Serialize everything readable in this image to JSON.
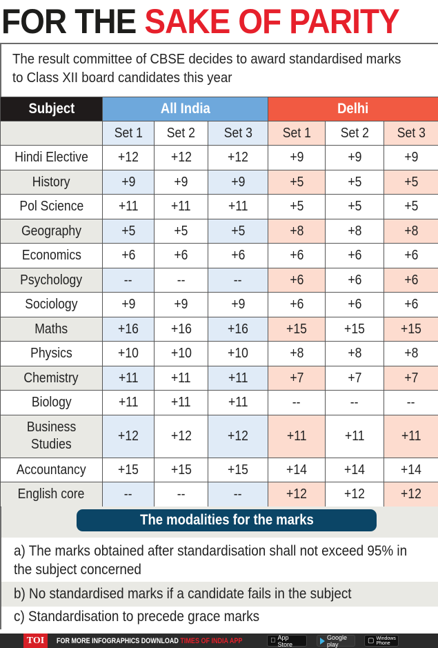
{
  "headline": {
    "part1": "FOR THE",
    "part2": "SAKE OF PARITY"
  },
  "intro": "The result committee of CBSE decides to award standardised marks to Class XII board candidates this year",
  "table": {
    "subject_header": "Subject",
    "groups": [
      {
        "label": "All India",
        "color": "#6ea8dc"
      },
      {
        "label": "Delhi",
        "color": "#f15a42"
      }
    ],
    "set_labels": [
      "Set 1",
      "Set 2",
      "Set 3",
      "Set 1",
      "Set 2",
      "Set 3"
    ],
    "rows": [
      {
        "subject": "Hindi Elective",
        "values": [
          "+12",
          "+12",
          "+12",
          "+9",
          "+9",
          "+9"
        ]
      },
      {
        "subject": "History",
        "values": [
          "+9",
          "+9",
          "+9",
          "+5",
          "+5",
          "+5"
        ]
      },
      {
        "subject": "Pol Science",
        "values": [
          "+11",
          "+11",
          "+11",
          "+5",
          "+5",
          "+5"
        ]
      },
      {
        "subject": "Geography",
        "values": [
          "+5",
          "+5",
          "+5",
          "+8",
          "+8",
          "+8"
        ]
      },
      {
        "subject": "Economics",
        "values": [
          "+6",
          "+6",
          "+6",
          "+6",
          "+6",
          "+6"
        ]
      },
      {
        "subject": "Psychology",
        "values": [
          "--",
          "--",
          "--",
          "+6",
          "+6",
          "+6"
        ]
      },
      {
        "subject": "Sociology",
        "values": [
          "+9",
          "+9",
          "+9",
          "+6",
          "+6",
          "+6"
        ]
      },
      {
        "subject": "Maths",
        "values": [
          "+16",
          "+16",
          "+16",
          "+15",
          "+15",
          "+15"
        ]
      },
      {
        "subject": "Physics",
        "values": [
          "+10",
          "+10",
          "+10",
          "+8",
          "+8",
          "+8"
        ]
      },
      {
        "subject": "Chemistry",
        "values": [
          "+11",
          "+11",
          "+11",
          "+7",
          "+7",
          "+7"
        ]
      },
      {
        "subject": "Biology",
        "values": [
          "+11",
          "+11",
          "+11",
          "--",
          "--",
          "--"
        ]
      },
      {
        "subject_line1": "Business",
        "subject_line2": "Studies",
        "subject": "Business Studies",
        "values": [
          "+12",
          "+12",
          "+12",
          "+11",
          "+11",
          "+11"
        ]
      },
      {
        "subject": "Accountancy",
        "values": [
          "+15",
          "+15",
          "+15",
          "+14",
          "+14",
          "+14"
        ]
      },
      {
        "subject": "English core",
        "values": [
          "--",
          "--",
          "--",
          "+12",
          "+12",
          "+12"
        ]
      }
    ]
  },
  "modalities": {
    "title": "The modalities for the marks",
    "items": [
      "a) The marks obtained after standardisation shall not exceed 95% in the subject concerned",
      "b) No standardised marks if a candidate fails in the subject",
      "c) Standardisation to precede grace marks"
    ]
  },
  "footer": {
    "logo": "TOI",
    "text": "FOR MORE  INFOGRAPHICS DOWNLOAD ",
    "app_name": "TIMES OF INDIA  APP",
    "badges": [
      "App Store",
      "Google play",
      "Windows Phone"
    ],
    "apple_small": "Available on the"
  },
  "chart_data": {
    "type": "table",
    "title": "FOR THE SAKE OF PARITY",
    "subtitle": "The result committee of CBSE decides to award standardised marks to Class XII board candidates this year",
    "columns": [
      "Subject",
      "All India Set 1",
      "All India Set 2",
      "All India Set 3",
      "Delhi Set 1",
      "Delhi Set 2",
      "Delhi Set 3"
    ],
    "rows": [
      [
        "Hindi Elective",
        "+12",
        "+12",
        "+12",
        "+9",
        "+9",
        "+9"
      ],
      [
        "History",
        "+9",
        "+9",
        "+9",
        "+5",
        "+5",
        "+5"
      ],
      [
        "Pol Science",
        "+11",
        "+11",
        "+11",
        "+5",
        "+5",
        "+5"
      ],
      [
        "Geography",
        "+5",
        "+5",
        "+5",
        "+8",
        "+8",
        "+8"
      ],
      [
        "Economics",
        "+6",
        "+6",
        "+6",
        "+6",
        "+6",
        "+6"
      ],
      [
        "Psychology",
        "--",
        "--",
        "--",
        "+6",
        "+6",
        "+6"
      ],
      [
        "Sociology",
        "+9",
        "+9",
        "+9",
        "+6",
        "+6",
        "+6"
      ],
      [
        "Maths",
        "+16",
        "+16",
        "+16",
        "+15",
        "+15",
        "+15"
      ],
      [
        "Physics",
        "+10",
        "+10",
        "+10",
        "+8",
        "+8",
        "+8"
      ],
      [
        "Chemistry",
        "+11",
        "+11",
        "+11",
        "+7",
        "+7",
        "+7"
      ],
      [
        "Biology",
        "+11",
        "+11",
        "+11",
        "--",
        "--",
        "--"
      ],
      [
        "Business Studies",
        "+12",
        "+12",
        "+12",
        "+11",
        "+11",
        "+11"
      ],
      [
        "Accountancy",
        "+15",
        "+15",
        "+15",
        "+14",
        "+14",
        "+14"
      ],
      [
        "English core",
        "--",
        "--",
        "--",
        "+12",
        "+12",
        "+12"
      ]
    ],
    "notes": [
      "a) The marks obtained after standardisation shall not exceed 95% in the subject concerned",
      "b) No standardised marks if a candidate fails in the subject",
      "c) Standardisation to precede grace marks"
    ]
  }
}
